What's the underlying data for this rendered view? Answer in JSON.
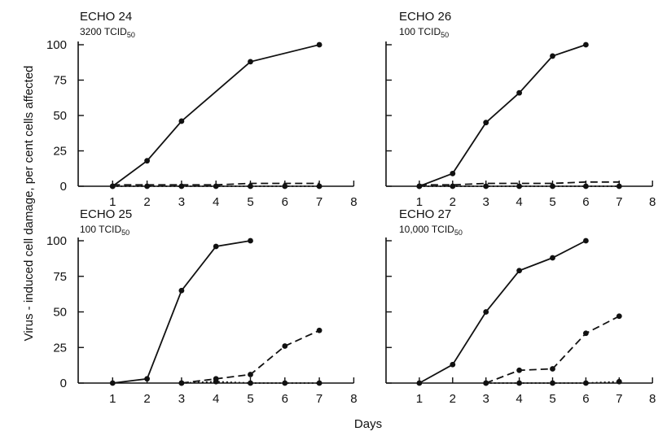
{
  "ylabel": "Virus - induced cell damage, per cent cells affected",
  "xlabel": "Days",
  "chart_data": [
    {
      "type": "line",
      "title": "ECHO 24",
      "dose": {
        "number": "3200",
        "unit": "TCID",
        "sub": "50"
      },
      "xlim": [
        0,
        8
      ],
      "ylim": [
        0,
        100
      ],
      "xticks": [
        1,
        2,
        3,
        4,
        5,
        6,
        7,
        8
      ],
      "yticks": [
        0,
        25,
        50,
        75,
        100
      ],
      "series": [
        {
          "style": "solid",
          "x": [
            1,
            2,
            3,
            5,
            7
          ],
          "y": [
            0,
            18,
            46,
            88,
            100
          ],
          "markers": true
        },
        {
          "style": "dashed",
          "x": [
            1,
            2,
            3,
            4,
            5,
            6,
            7
          ],
          "y": [
            1,
            1,
            1,
            1,
            2,
            2,
            2
          ],
          "markers": false
        },
        {
          "style": "dotted",
          "x": [
            1,
            2,
            3,
            4,
            5,
            6,
            7
          ],
          "y": [
            0,
            0,
            0,
            0,
            0,
            0,
            0
          ],
          "markers": true
        }
      ]
    },
    {
      "type": "line",
      "title": "ECHO 26",
      "dose": {
        "number": "100",
        "unit": "TCID",
        "sub": "50"
      },
      "xlim": [
        0,
        8
      ],
      "ylim": [
        0,
        100
      ],
      "xticks": [
        1,
        2,
        3,
        4,
        5,
        6,
        7,
        8
      ],
      "yticks": [
        0,
        25,
        50,
        75,
        100
      ],
      "series": [
        {
          "style": "solid",
          "x": [
            1,
            2,
            3,
            4,
            5,
            6
          ],
          "y": [
            0,
            9,
            45,
            66,
            92,
            100
          ],
          "markers": true
        },
        {
          "style": "dashed",
          "x": [
            1,
            2,
            3,
            4,
            5,
            6,
            7
          ],
          "y": [
            1,
            1,
            2,
            2,
            2,
            3,
            3
          ],
          "markers": false
        },
        {
          "style": "dotted",
          "x": [
            1,
            2,
            3,
            4,
            5,
            6,
            7
          ],
          "y": [
            0,
            0,
            0,
            0,
            0,
            0,
            0
          ],
          "markers": true
        }
      ]
    },
    {
      "type": "line",
      "title": "ECHO 25",
      "dose": {
        "number": "100",
        "unit": "TCID",
        "sub": "50"
      },
      "xlim": [
        0,
        8
      ],
      "ylim": [
        0,
        100
      ],
      "xticks": [
        1,
        2,
        3,
        4,
        5,
        6,
        7,
        8
      ],
      "yticks": [
        0,
        25,
        50,
        75,
        100
      ],
      "series": [
        {
          "style": "solid",
          "x": [
            1,
            2,
            3,
            4,
            5
          ],
          "y": [
            0,
            3,
            65,
            96,
            100
          ],
          "markers": true
        },
        {
          "style": "dashed",
          "x": [
            3,
            4,
            5,
            6,
            7
          ],
          "y": [
            0,
            3,
            6,
            26,
            37
          ],
          "markers": true
        },
        {
          "style": "dotted",
          "x": [
            3,
            4,
            5,
            6,
            7
          ],
          "y": [
            0,
            1,
            0,
            0,
            0
          ],
          "markers": true
        }
      ]
    },
    {
      "type": "line",
      "title": "ECHO 27",
      "dose": {
        "number": "10,000",
        "unit": "TCID",
        "sub": "50"
      },
      "xlim": [
        0,
        8
      ],
      "ylim": [
        0,
        100
      ],
      "xticks": [
        1,
        2,
        3,
        4,
        5,
        6,
        7,
        8
      ],
      "yticks": [
        0,
        25,
        50,
        75,
        100
      ],
      "series": [
        {
          "style": "solid",
          "x": [
            1,
            2,
            3,
            4,
            5,
            6
          ],
          "y": [
            0,
            13,
            50,
            79,
            88,
            100
          ],
          "markers": true
        },
        {
          "style": "dashed",
          "x": [
            3,
            4,
            5,
            6,
            7
          ],
          "y": [
            0,
            9,
            10,
            35,
            47
          ],
          "markers": true
        },
        {
          "style": "dotted",
          "x": [
            3,
            4,
            5,
            6,
            7
          ],
          "y": [
            0,
            0,
            0,
            0,
            1
          ],
          "markers": true
        }
      ]
    }
  ]
}
